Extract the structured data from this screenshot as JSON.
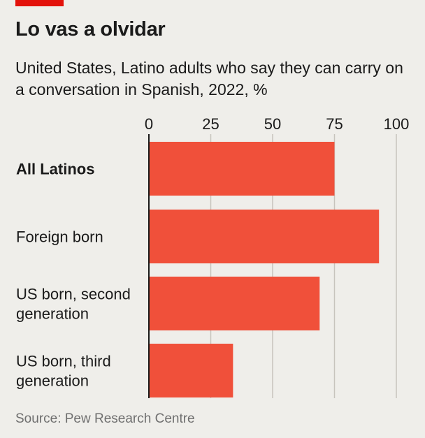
{
  "colors": {
    "accent": "#e3120b",
    "bar": "#f0503a",
    "gridline": "#c7c4bd",
    "axis": "#1a1a1a",
    "background": "#efeeea",
    "source_text": "#6f6f6f"
  },
  "chart_data": {
    "type": "bar",
    "orientation": "horizontal",
    "title": "Lo vas a olvidar",
    "subtitle": "United States, Latino adults who say they can carry on a conversation in Spanish, 2022, %",
    "categories": [
      [
        "All Latinos"
      ],
      [
        "Foreign born"
      ],
      [
        "US born, second",
        "generation"
      ],
      [
        "US born, third",
        "generation"
      ]
    ],
    "category_bold": [
      true,
      false,
      false,
      false
    ],
    "values": [
      75,
      93,
      69,
      34
    ],
    "xlim": [
      0,
      100
    ],
    "xticks": [
      0,
      25,
      50,
      75,
      100
    ],
    "xtick_labels": [
      "0",
      "25",
      "50",
      "75",
      "100"
    ],
    "xlabel": "",
    "ylabel": "",
    "grid": true,
    "source": "Source: Pew Research Centre"
  }
}
